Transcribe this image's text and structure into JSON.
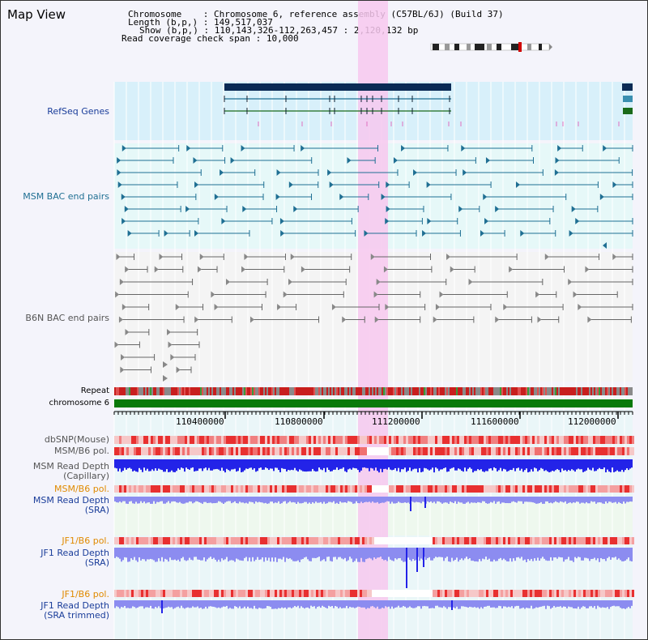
{
  "page": {
    "title": "Map View"
  },
  "info": {
    "chromosome_label": "Chromosome",
    "chromosome_value": "Chromosome 6, reference assembly (C57BL/6J) (Build 37)",
    "length_label": "Length (b,p,)",
    "length_value": "149,517,037",
    "show_label": "Show (b,p,)",
    "show_value": "110,143,326-112,263,457 : 2,120,132 bp",
    "read_span_label": "Read coverage check span",
    "read_span_value": "10,000"
  },
  "tracks": {
    "refseq": "RefSeq Genes",
    "msm_bac": "MSM BAC end pairs",
    "b6n_bac": "B6N BAC end pairs",
    "repeat": "Repeat",
    "chromosome": "chromosome 6",
    "dbsnp": "dbSNP(Mouse)",
    "msm_b6_pol_1": "MSM/B6 pol.",
    "msm_read_depth_cap": "MSM Read Depth\n(Capillary)",
    "msm_b6_pol_2": "MSM/B6 pol.",
    "msm_read_depth_sra": "MSM Read Depth\n(SRA)",
    "jf1_b6_pol_1": "JF1/B6 pol.",
    "jf1_read_depth_sra": "JF1 Read Depth\n(SRA)",
    "jf1_b6_pol_2": "JF1/B6 pol.",
    "jf1_read_depth_trimmed": "JF1 Read Depth\n(SRA trimmed)"
  },
  "axis": {
    "ticks": [
      "110400000",
      "110800000",
      "111200000",
      "111600000",
      "112000000"
    ]
  },
  "colors": {
    "refseq_bg": "#d8f0fa",
    "bac_bg": "#e6f8f8",
    "b6n_bg": "#f4f4f4",
    "highlight": "#f7c8ef",
    "chrom_bar": "#0a7a0a",
    "teal_feature": "#1f6f93",
    "gray_feature": "#666666",
    "gene_dark": "#0b2b55",
    "gene_green": "#1a6a1a",
    "depth_blue": "#2323e8",
    "depth_light": "#8c8cf0",
    "pol_red": "#e84040"
  }
}
